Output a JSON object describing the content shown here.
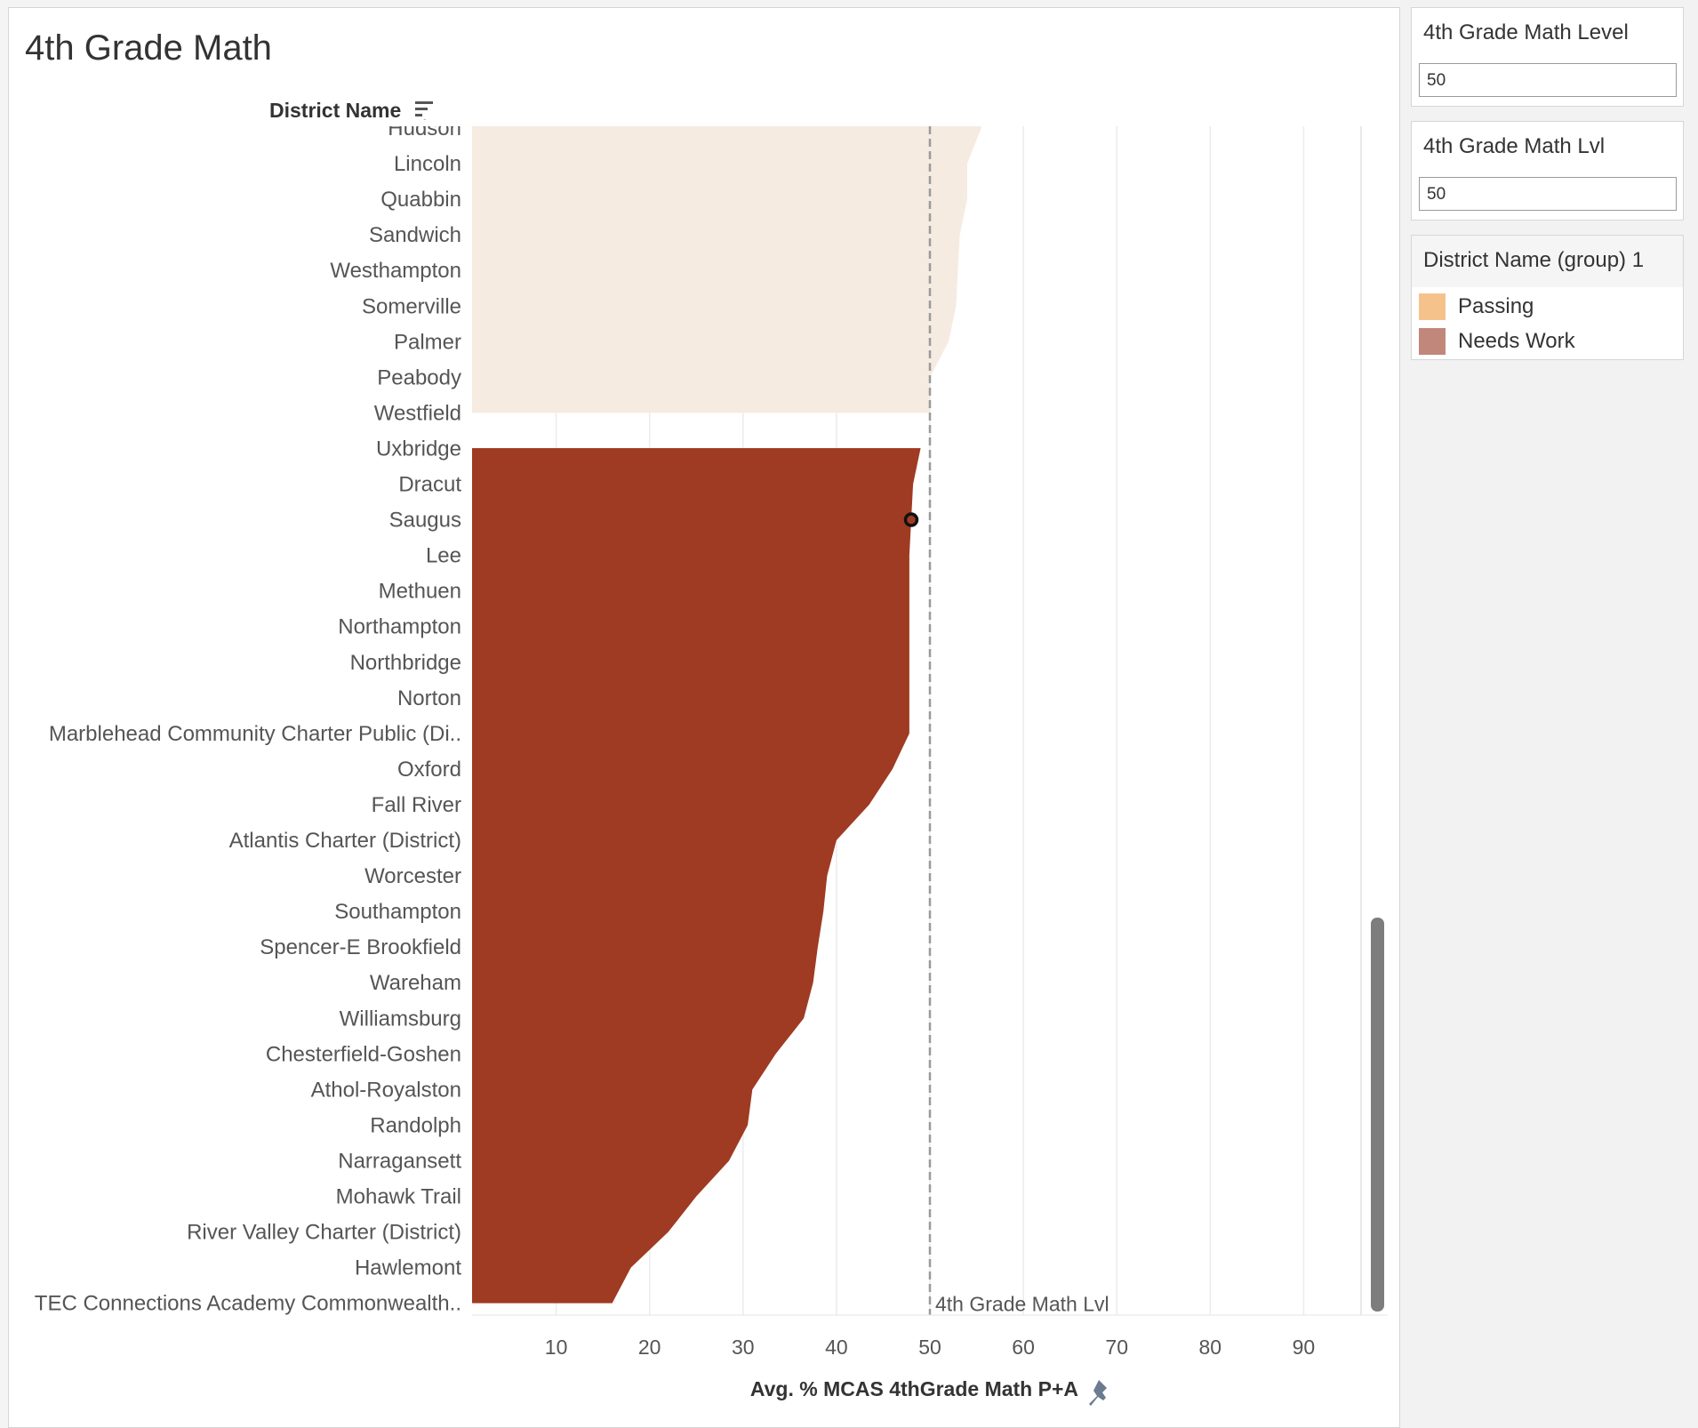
{
  "title": "4th Grade Math",
  "row_header": "District Name",
  "parameters": [
    {
      "label": "4th Grade Math Level",
      "value": "50"
    },
    {
      "label": "4th Grade Math Lvl",
      "value": "50"
    }
  ],
  "legend": {
    "title": "District Name (group) 1",
    "items": [
      {
        "label": "Passing",
        "color": "#f6c28b"
      },
      {
        "label": "Needs Work",
        "color": "#c1877a"
      }
    ]
  },
  "chart_data": {
    "type": "area",
    "orientation": "horizontal",
    "title": "4th Grade Math",
    "ylabel": "District Name",
    "xlabel": "Avg. % MCAS 4thGrade Math P+A",
    "xlim": [
      1,
      99
    ],
    "xticks": [
      10,
      20,
      30,
      40,
      50,
      60,
      70,
      80,
      90
    ],
    "grid": true,
    "legend_position": "right",
    "reference_line": {
      "value": 50,
      "label": "4th Grade Math Lvl"
    },
    "highlighted_point": {
      "category": "Saugus",
      "value": 48
    },
    "categories": [
      "Hudson",
      "Lincoln",
      "Quabbin",
      "Sandwich",
      "Westhampton",
      "Somerville",
      "Palmer",
      "Peabody",
      "Westfield",
      "Uxbridge",
      "Dracut",
      "Saugus",
      "Lee",
      "Methuen",
      "Northampton",
      "Northbridge",
      "Norton",
      "Marblehead Community Charter Public (Di..",
      "Oxford",
      "Fall River",
      "Atlantis Charter (District)",
      "Worcester",
      "Southampton",
      "Spencer-E Brookfield",
      "Wareham",
      "Williamsburg",
      "Chesterfield-Goshen",
      "Athol-Royalston",
      "Randolph",
      "Narragansett",
      "Mohawk Trail",
      "River Valley Charter (District)",
      "Hawlemont",
      "TEC Connections Academy Commonwealth.."
    ],
    "series": [
      {
        "name": "Passing",
        "color": "#f6ebe1",
        "values": [
          55.5,
          54,
          54,
          53.2,
          53,
          52.8,
          52,
          50,
          50,
          null,
          null,
          null,
          null,
          null,
          null,
          null,
          null,
          null,
          null,
          null,
          null,
          null,
          null,
          null,
          null,
          null,
          null,
          null,
          null,
          null,
          null,
          null,
          null,
          null
        ]
      },
      {
        "name": "Needs Work",
        "color": "#9f3b22",
        "values": [
          null,
          null,
          null,
          null,
          null,
          null,
          null,
          null,
          null,
          49,
          48.2,
          48,
          47.8,
          47.8,
          47.8,
          47.8,
          47.8,
          47.8,
          46,
          43.5,
          40,
          39,
          38.6,
          38,
          37.5,
          36.5,
          33.5,
          31,
          30.5,
          28.5,
          25,
          22,
          18,
          16
        ]
      }
    ]
  },
  "scrollbar": {
    "color": "#7d7d7d"
  }
}
